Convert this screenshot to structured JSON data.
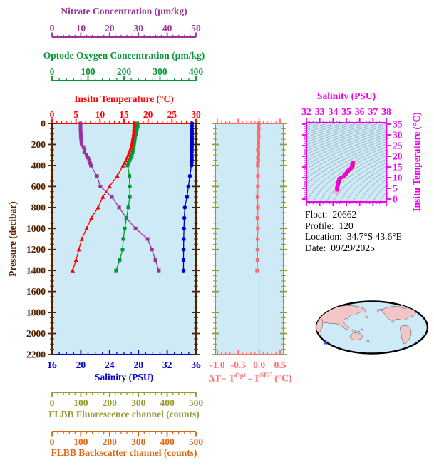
{
  "colors": {
    "nitrate": "#993399",
    "oxygen": "#009933",
    "temperature": "#FF0000",
    "salinity": "#0000CC",
    "pressure": "#552200",
    "delta_t": "#FF6B6B",
    "fluorescence": "#999933",
    "backscatter": "#DD6611",
    "ts_magenta": "#EE00EE",
    "ts_red_edge": "#FF0000",
    "ts_end_marker": "#F9A8D0",
    "plot_bg": "#CDEAF6",
    "contour": "#9AAEBC",
    "zero_line": "#C8C8C8",
    "land": "#F2C6C6",
    "map_outline": "#000000",
    "star": "#2244EE",
    "info_text": "#000000"
  },
  "titles": {
    "nitrate": "Nitrate Concentration (µm/kg)",
    "oxygen": "Optode Oxygen Concentration (µm/kg)",
    "temperature": "Insitu Temperature (°C)",
    "salinity": "Salinity (PSU)",
    "pressure": "Pressure (decibar)",
    "fluorescence": "FLBB Fluorescence channel (counts)",
    "backscatter": "FLBB Backscatter channel (counts)",
    "ts_title": "Salinity (PSU)",
    "ts_ylabel": "Insitu Temperature (°C)",
    "delta_t_parts": {
      "p1": "ΔT= T",
      "sup1": "Opt",
      "p2": " - T",
      "sup2": "SBE",
      "p3": " (°C)"
    }
  },
  "info": {
    "float_label": "Float:",
    "float_value": "20662",
    "profile_label": "Profile:",
    "profile_value": "120",
    "location_label": "Location:",
    "location_value": "34.7°S  43.6°E",
    "date_label": "Date:",
    "date_value": "09/29/2025"
  },
  "chart_data": [
    {
      "id": "main_profile",
      "type": "line",
      "ylabel": "Pressure (decibar)",
      "ylim": [
        0,
        2200
      ],
      "y_ticks": [
        0,
        200,
        400,
        600,
        800,
        1000,
        1200,
        1400,
        1600,
        1800,
        2000,
        2200
      ],
      "y_minor_step": 50,
      "x_axes": [
        {
          "name": "nitrate",
          "label": "Nitrate Concentration (µm/kg)",
          "range": [
            0,
            50
          ],
          "ticks": [
            0,
            10,
            20,
            30,
            40,
            50
          ],
          "minor_step": 2
        },
        {
          "name": "oxygen",
          "label": "Optode Oxygen Concentration (µm/kg)",
          "range": [
            0,
            400
          ],
          "ticks": [
            0,
            100,
            200,
            300,
            400
          ],
          "minor_step": 20
        },
        {
          "name": "temperature",
          "label": "Insitu Temperature (°C)",
          "range": [
            0,
            30
          ],
          "ticks": [
            0,
            5,
            10,
            15,
            20,
            25,
            30
          ],
          "minor_step": 1
        },
        {
          "name": "salinity",
          "label": "Salinity (PSU)",
          "range": [
            16,
            36
          ],
          "ticks": [
            16,
            20,
            24,
            28,
            32,
            36
          ],
          "minor_step": 1
        },
        {
          "name": "fluorescence",
          "label": "FLBB Fluorescence channel (counts)",
          "range": [
            0,
            500
          ],
          "ticks": [
            0,
            100,
            200,
            300,
            400,
            500
          ],
          "minor_step": 20
        },
        {
          "name": "backscatter",
          "label": "FLBB Backscatter channel (counts)",
          "range": [
            0,
            500
          ],
          "ticks": [
            0,
            100,
            200,
            300,
            400,
            500
          ],
          "minor_step": 20
        }
      ],
      "pressures": [
        0,
        25,
        50,
        75,
        100,
        125,
        150,
        175,
        200,
        225,
        250,
        275,
        300,
        325,
        350,
        375,
        400,
        500,
        600,
        700,
        800,
        900,
        1000,
        1100,
        1200,
        1300,
        1400
      ],
      "series": [
        {
          "name": "temperature",
          "marker": "triangle",
          "values": [
            17.2,
            17.15,
            17.1,
            17.05,
            17.0,
            16.92,
            16.8,
            16.72,
            16.6,
            16.5,
            16.3,
            16.1,
            15.9,
            15.65,
            15.4,
            15.1,
            14.8,
            13.6,
            12.0,
            10.6,
            9.6,
            8.2,
            7.2,
            6.2,
            5.6,
            5.0,
            4.3
          ]
        },
        {
          "name": "oxygen",
          "marker": "square",
          "values": [
            236,
            238,
            236,
            234,
            233,
            231,
            230,
            229,
            228,
            227,
            226,
            224,
            222,
            219,
            216,
            213,
            210,
            215,
            216,
            216,
            212,
            207,
            202,
            198,
            196,
            188,
            178
          ]
        },
        {
          "name": "nitrate",
          "marker": "square",
          "values": [
            9.9,
            9.9,
            9.9,
            9.95,
            10.0,
            10.0,
            10.1,
            10.2,
            10.3,
            10.9,
            11.3,
            11.2,
            12.0,
            12.5,
            12.9,
            13.2,
            13.5,
            15.6,
            16.8,
            20.8,
            23.3,
            25.8,
            29.0,
            33.2,
            34.7,
            35.9,
            37.1
          ]
        },
        {
          "name": "salinity",
          "marker": "circle",
          "values": [
            35.45,
            35.45,
            35.45,
            35.45,
            35.45,
            35.44,
            35.44,
            35.43,
            35.43,
            35.42,
            35.42,
            35.41,
            35.4,
            35.42,
            35.43,
            35.4,
            35.38,
            35.15,
            34.95,
            34.75,
            34.45,
            34.38,
            34.33,
            34.3,
            34.28,
            34.27,
            34.27
          ]
        }
      ]
    },
    {
      "id": "delta_t",
      "type": "line",
      "xlabel": "ΔT= T^Opt - T^SBE (°C)",
      "xlim": [
        -1.0,
        0.5
      ],
      "x_ticks": [
        -1.0,
        -0.5,
        0.0,
        0.5
      ],
      "x_minor_step": 0.1,
      "ylim": [
        0,
        2200
      ],
      "pressures": [
        0,
        25,
        50,
        75,
        100,
        125,
        150,
        175,
        200,
        225,
        250,
        275,
        300,
        325,
        350,
        375,
        400,
        500,
        600,
        700,
        800,
        900,
        1000,
        1100,
        1200,
        1300,
        1400
      ],
      "values": [
        -0.01,
        -0.02,
        -0.01,
        -0.02,
        -0.02,
        -0.01,
        -0.02,
        -0.02,
        -0.02,
        -0.02,
        -0.03,
        -0.02,
        -0.02,
        -0.03,
        -0.02,
        -0.03,
        -0.03,
        -0.03,
        -0.03,
        -0.04,
        -0.03,
        -0.04,
        -0.03,
        -0.04,
        -0.04,
        -0.04,
        -0.05
      ]
    },
    {
      "id": "ts_diagram",
      "type": "scatter",
      "title": "Salinity (PSU)",
      "ylabel": "Insitu Temperature (°C)",
      "xlim": [
        32,
        38
      ],
      "ylim": [
        0,
        35
      ],
      "x_ticks": [
        32,
        33,
        34,
        35,
        36,
        37,
        38
      ],
      "x_minor_step": 0.25,
      "y_ticks": [
        0,
        5,
        10,
        15,
        20,
        25,
        30,
        35
      ],
      "y_minor_step": 1,
      "salinity": [
        35.45,
        35.45,
        35.45,
        35.45,
        35.45,
        35.44,
        35.44,
        35.43,
        35.43,
        35.42,
        35.42,
        35.41,
        35.4,
        35.42,
        35.43,
        35.4,
        35.38,
        35.15,
        34.95,
        34.75,
        34.45,
        34.38,
        34.33,
        34.3,
        34.28,
        34.27,
        34.27
      ],
      "temperature": [
        17.2,
        17.15,
        17.1,
        17.05,
        17.0,
        16.92,
        16.8,
        16.72,
        16.6,
        16.5,
        16.3,
        16.1,
        15.9,
        15.65,
        15.4,
        15.1,
        14.8,
        13.6,
        12.0,
        10.6,
        9.6,
        8.2,
        7.2,
        6.2,
        5.6,
        5.0,
        4.3
      ]
    }
  ]
}
